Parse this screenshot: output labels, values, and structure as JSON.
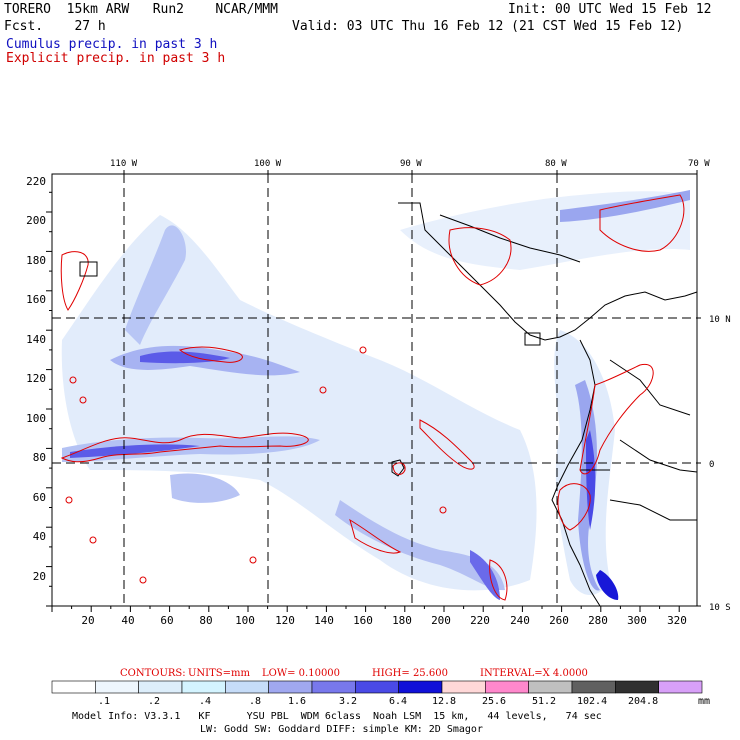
{
  "header": {
    "model_line": "TORERO  15km ARW   Run2    NCAR/MMM",
    "fcst_line": "Fcst.    27 h",
    "init_line": "Init: 00 UTC Wed 15 Feb 12",
    "valid_line": "Valid: 03 UTC Thu 16 Feb 12 (21 CST Wed 15 Feb 12)",
    "legend_cumulus": "Cumulus precip. in past 3 h",
    "legend_explicit": "Explicit precip. in past 3 h"
  },
  "map": {
    "lon_labels": [
      "110 W",
      "100 W",
      "90 W",
      "80 W",
      "70 W"
    ],
    "lat_labels": [
      "10 N",
      "0",
      "10 S"
    ],
    "y_ticks": [
      "220",
      "200",
      "180",
      "160",
      "140",
      "120",
      "100",
      "80",
      "60",
      "40",
      "20"
    ],
    "x_ticks": [
      "20",
      "40",
      "60",
      "80",
      "100",
      "120",
      "140",
      "160",
      "180",
      "200",
      "220",
      "240",
      "260",
      "280",
      "300",
      "320"
    ]
  },
  "contour_info": {
    "contours": "CONTOURS:",
    "units": "UNITS=mm",
    "low": "LOW= 0.10000",
    "high": "HIGH=  25.600",
    "interval": "INTERVAL=X  4.0000"
  },
  "colorbar": {
    "levels": [
      ".1",
      ".2",
      ".4",
      ".8",
      "1.6",
      "3.2",
      "6.4",
      "12.8",
      "25.6",
      "51.2",
      "102.4",
      "204.8"
    ],
    "unit": "mm",
    "colors": [
      "#ffffff",
      "#eef6fd",
      "#ddeefb",
      "#d4f4ff",
      "#c6dcf8",
      "#a0a8f0",
      "#7878ec",
      "#4a4ae6",
      "#1010d8",
      "#ffd8d8",
      "#ff88cc",
      "#c0c0c0",
      "#606060",
      "#303030",
      "#d8a0f8"
    ]
  },
  "footer": {
    "line1": "Model Info: V3.3.1   KF      YSU PBL  WDM 6class  Noah LSM  15 km,   44 levels,   74 sec",
    "line2": "LW: Godd SW: Goddard DIFF: simple KM: 2D Smagor"
  }
}
